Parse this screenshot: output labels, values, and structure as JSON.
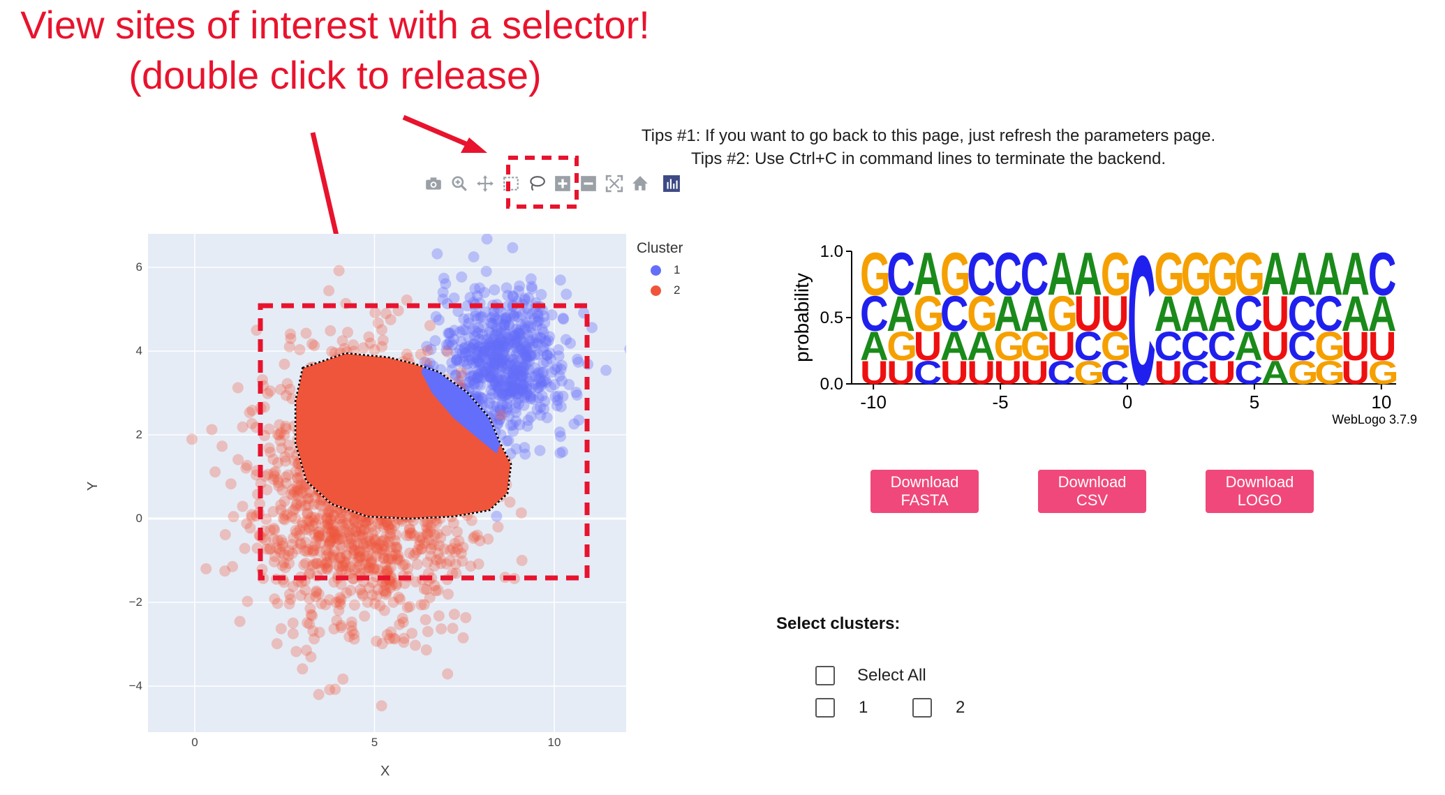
{
  "annotation": {
    "line1": "View sites of interest with a selector!",
    "line2": "(double click to release)",
    "color": "#e8132d"
  },
  "tips": {
    "tip1": "Tips #1: If you want to go back to this page, just refresh the parameters page.",
    "tip2": "Tips #2: Use Ctrl+C in command lines to terminate the backend."
  },
  "modebar": {
    "icons": [
      "camera-icon",
      "zoom-icon",
      "pan-icon",
      "box-select-icon",
      "lasso-select-icon",
      "zoom-in-icon",
      "zoom-out-icon",
      "autoscale-icon",
      "reset-axes-icon",
      "plotly-logo-icon"
    ]
  },
  "scatter": {
    "legend_title": "Cluster",
    "legend": [
      {
        "label": "1",
        "color": "#636efa"
      },
      {
        "label": "2",
        "color": "#ef553b"
      }
    ],
    "xlabel": "X",
    "ylabel": "Y",
    "x_ticks": [
      "0",
      "5",
      "10"
    ],
    "y_ticks": [
      "6",
      "4",
      "2",
      "0",
      "−2",
      "−4"
    ],
    "xlim": [
      -1.3,
      12
    ],
    "ylim": [
      -5.1,
      6.8
    ],
    "background": "#e5ecf6"
  },
  "chart_data": {
    "type": "scatter",
    "title": "",
    "xlabel": "X",
    "ylabel": "Y",
    "xlim": [
      -1.3,
      12
    ],
    "ylim": [
      -5.1,
      6.8
    ],
    "grid": true,
    "legend_title": "Cluster",
    "legend_position": "right",
    "series": [
      {
        "name": "1",
        "color": "#636efa",
        "center": [
          8.6,
          3.7
        ],
        "spread": [
          0.9,
          0.9
        ]
      },
      {
        "name": "2",
        "color": "#ef553b",
        "center": [
          4.7,
          0.6
        ],
        "spread": [
          1.5,
          1.6
        ]
      }
    ],
    "selection": {
      "lasso_region_center": [
        5.7,
        1.9
      ]
    }
  },
  "logo": {
    "ylabel": "probability",
    "y_ticks": [
      "1.0",
      "0.5",
      "0.0"
    ],
    "x_ticks": [
      "-10",
      "-5",
      "0",
      "5",
      "10"
    ],
    "credit": "WebLogo 3.7.9",
    "colors": {
      "A": "#1a8a1a",
      "C": "#2020ee",
      "G": "#f5a000",
      "U": "#ee1010"
    },
    "columns": [
      [
        "G",
        "C",
        "A",
        "U"
      ],
      [
        "C",
        "A",
        "G",
        "U"
      ],
      [
        "A",
        "G",
        "U",
        "C"
      ],
      [
        "G",
        "C",
        "A",
        "U"
      ],
      [
        "C",
        "G",
        "A",
        "U"
      ],
      [
        "C",
        "A",
        "G",
        "U"
      ],
      [
        "C",
        "A",
        "G",
        "U"
      ],
      [
        "A",
        "G",
        "U",
        "C"
      ],
      [
        "A",
        "U",
        "C",
        "G"
      ],
      [
        "G",
        "U",
        "G",
        "C"
      ],
      [
        "C"
      ],
      [
        "G",
        "A",
        "C",
        "U"
      ],
      [
        "G",
        "A",
        "C",
        "C"
      ],
      [
        "G",
        "A",
        "C",
        "U"
      ],
      [
        "G",
        "C",
        "A",
        "C"
      ],
      [
        "A",
        "U",
        "U",
        "A"
      ],
      [
        "A",
        "C",
        "C",
        "G"
      ],
      [
        "A",
        "C",
        "G",
        "G"
      ],
      [
        "A",
        "A",
        "U",
        "U"
      ],
      [
        "C",
        "A",
        "U",
        "G"
      ]
    ]
  },
  "downloads": [
    {
      "label": "Download\nFASTA"
    },
    {
      "label": "Download\nCSV"
    },
    {
      "label": "Download\nLOGO"
    }
  ],
  "clusters": {
    "title": "Select clusters:",
    "select_all": "Select All",
    "options": [
      "1",
      "2"
    ]
  }
}
